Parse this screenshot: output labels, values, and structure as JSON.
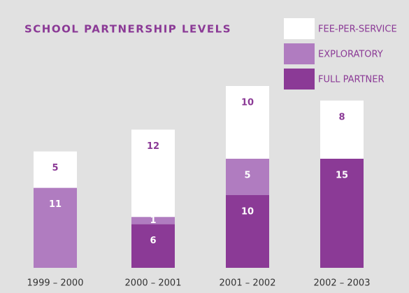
{
  "chart_data": {
    "type": "stacked-bar",
    "title": "SCHOOL PARTNERSHIP LEVELS",
    "categories": [
      "1999 – 2000",
      "2000 – 2001",
      "2001 – 2002",
      "2002 – 2003"
    ],
    "series": [
      {
        "name": "FULL PARTNER",
        "color": "#8b3a96",
        "values": [
          null,
          6,
          10,
          15
        ]
      },
      {
        "name": "EXPLORATORY",
        "color": "#b07cc0",
        "values": [
          11,
          1,
          5,
          null
        ]
      },
      {
        "name": "FEE-PER-SERVICE",
        "color": "#ffffff",
        "values": [
          5,
          12,
          10,
          8
        ]
      }
    ]
  }
}
